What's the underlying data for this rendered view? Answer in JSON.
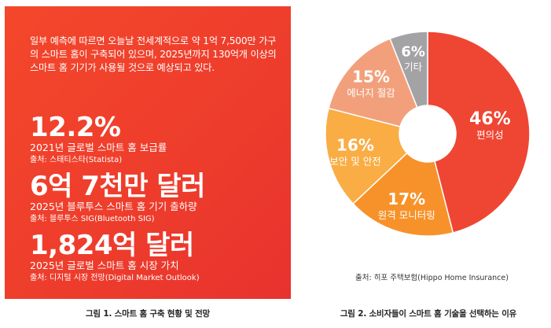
{
  "left_panel": {
    "intro": "일부 예측에 따르면 오늘날 전세계적으로 약 1억 7,500만 가구의 스마트 홈이 구축되어 있으며, 2025년까지 130억개 이상의 스마트 홈 기기가 사용될 것으로 예상되고 있다.",
    "stats": [
      {
        "value": "12.2%",
        "desc": "2021년 글로벌 스마트 홈 보급률",
        "source": "출처: 스태티스타(Statista)"
      },
      {
        "value": "6억 7천만 달러",
        "desc": "2025년 블루투스 스마트 홈 기기 출하량",
        "source": "출처: 블루투스 SIG(Bluetooth SIG)"
      },
      {
        "value": "1,824억 달러",
        "desc": "2025년 글로벌 스마트 홈 시장 가치",
        "source": "출처: 디지털 시장 전망(Digital Market Outlook)"
      }
    ],
    "caption": "그림 1. 스마트 홈 구축 현황 및 전망",
    "background_color": "#ef3e2c"
  },
  "right_panel": {
    "source": "출처: 히포 주택보험(Hippo Home Insurance)",
    "caption": "그림 2. 소비자들이 스마트 홈 기술을 선택하는 이유"
  },
  "chart_data": {
    "type": "pie",
    "donut": true,
    "categories": [
      "편의성",
      "원격 모니터링",
      "보안 및 안전",
      "에너지 절감",
      "기타"
    ],
    "values": [
      46,
      17,
      16,
      15,
      6
    ],
    "labels": [
      "46%",
      "17%",
      "16%",
      "15%",
      "6%"
    ],
    "colors": [
      "#ef4634",
      "#f7922a",
      "#f9ad44",
      "#f2a07c",
      "#a3a3a5"
    ]
  }
}
